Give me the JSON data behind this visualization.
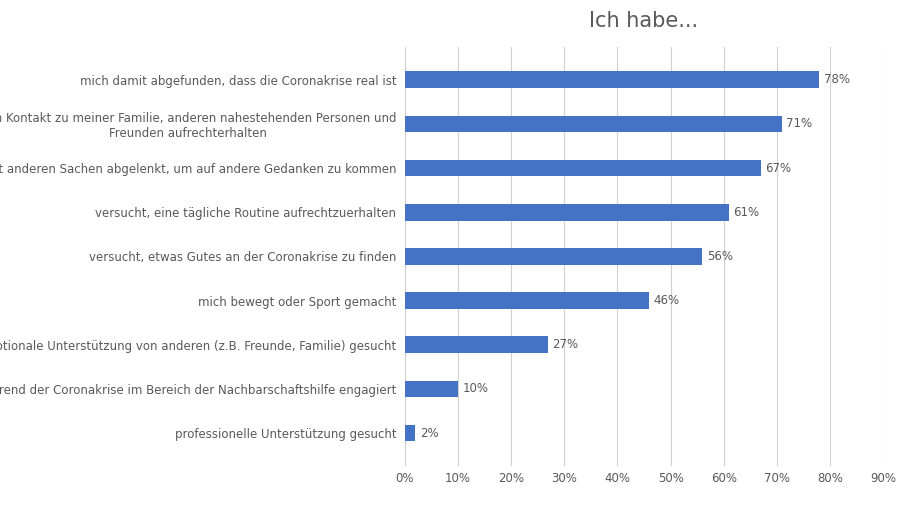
{
  "title": "Ich habe...",
  "categories": [
    "mich damit abgefunden, dass die Coronakrise real ist",
    "den Kontakt zu meiner Familie, anderen nahestehenden Personen und\nFreunden aufrechterhalten",
    "mich mit anderen Sachen abgelenkt, um auf andere Gedanken zu kommen",
    "versucht, eine tägliche Routine aufrechtzuerhalten",
    "versucht, etwas Gutes an der Coronakrise zu finden",
    "mich bewegt oder Sport gemacht",
    "emotionale Unterstützung von anderen (z.B. Freunde, Familie) gesucht",
    "mich während der Coronakrise im Bereich der Nachbarschaftshilfe engagiert",
    "professionelle Unterstützung gesucht"
  ],
  "values": [
    78,
    71,
    67,
    61,
    56,
    46,
    27,
    10,
    2
  ],
  "bar_color": "#4472C4",
  "label_color": "#595959",
  "title_color": "#595959",
  "background_color": "#ffffff",
  "grid_color": "#d0d0d0",
  "xlim": [
    0,
    90
  ],
  "xticks": [
    0,
    10,
    20,
    30,
    40,
    50,
    60,
    70,
    80,
    90
  ],
  "xtick_labels": [
    "0%",
    "10%",
    "20%",
    "30%",
    "40%",
    "50%",
    "60%",
    "70%",
    "80%",
    "90%"
  ],
  "title_fontsize": 15,
  "label_fontsize": 8.5,
  "tick_fontsize": 8.5,
  "value_fontsize": 8.5,
  "bar_height": 0.38
}
